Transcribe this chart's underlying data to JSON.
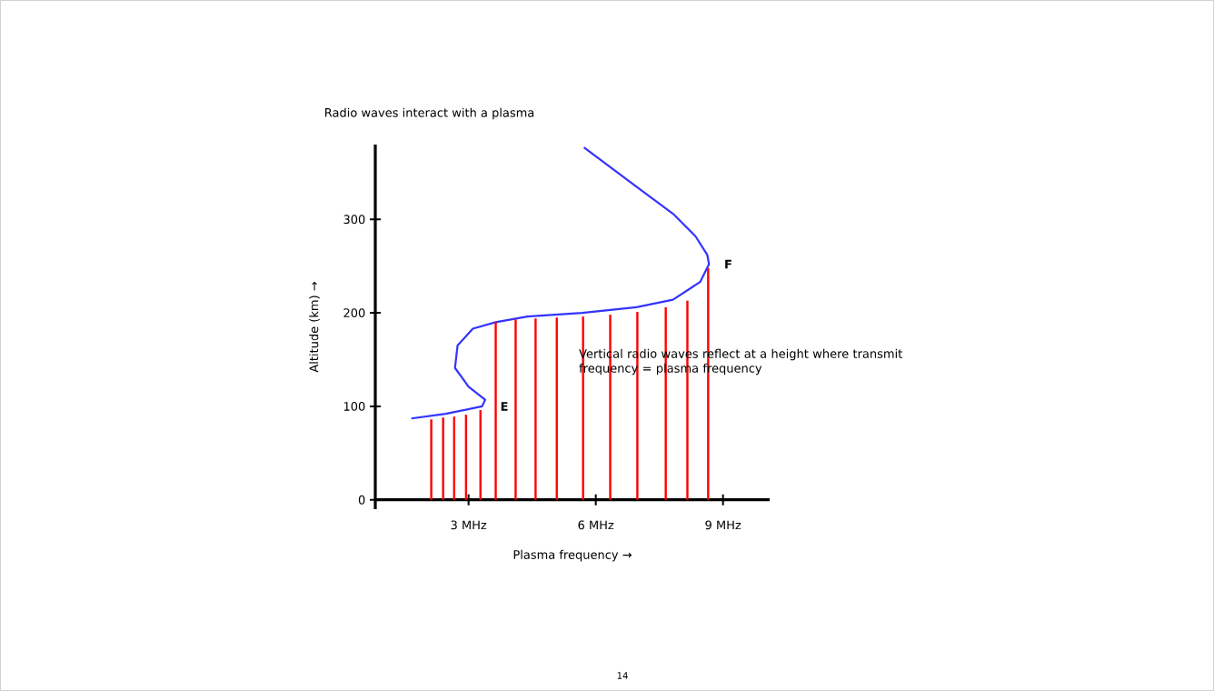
{
  "chart_data": {
    "type": "line",
    "title": "Radio waves interact with a plasma",
    "xlabel": "Plasma frequency →",
    "ylabel": "Altitude (km) →",
    "xlim": [
      0.8,
      10.1
    ],
    "ylim": [
      -10,
      380
    ],
    "xticks": [
      {
        "value": 3,
        "label": "3 MHz"
      },
      {
        "value": 6,
        "label": "6 MHz"
      },
      {
        "value": 9,
        "label": "9 MHz"
      }
    ],
    "yticks": [
      0,
      100,
      200,
      300
    ],
    "grid": false,
    "series": [
      {
        "color": "#3333ff",
        "x": [
          1.65,
          2.46,
          3.32,
          3.39,
          3.0,
          2.68,
          2.74,
          3.1,
          3.64,
          4.39,
          5.68,
          6.96,
          7.82,
          8.46,
          8.67,
          8.63,
          8.35,
          7.82,
          6.96,
          5.72
        ],
        "values": [
          87,
          92,
          100,
          107,
          121,
          141,
          165,
          183,
          190,
          196,
          200,
          206,
          214,
          233,
          252,
          262,
          282,
          306,
          335,
          377
        ]
      },
      {
        "type": "bar",
        "color": "#ff0000",
        "x": [
          2.12,
          2.4,
          2.66,
          2.94,
          3.28,
          3.64,
          4.11,
          4.58,
          5.08,
          5.7,
          6.34,
          6.98,
          7.65,
          8.16,
          8.65
        ],
        "values": [
          86,
          88,
          89,
          91,
          96,
          190,
          193,
          194,
          195,
          196,
          198,
          201,
          206,
          213,
          248
        ]
      }
    ],
    "annotations": [
      "Vertical radio waves reflect at a height where transmit frequency = plasma frequency",
      "14",
      {
        "text": "E",
        "x": 3.39,
        "y": 100
      },
      {
        "text": "F",
        "x": 8.67,
        "y": 252
      }
    ]
  }
}
